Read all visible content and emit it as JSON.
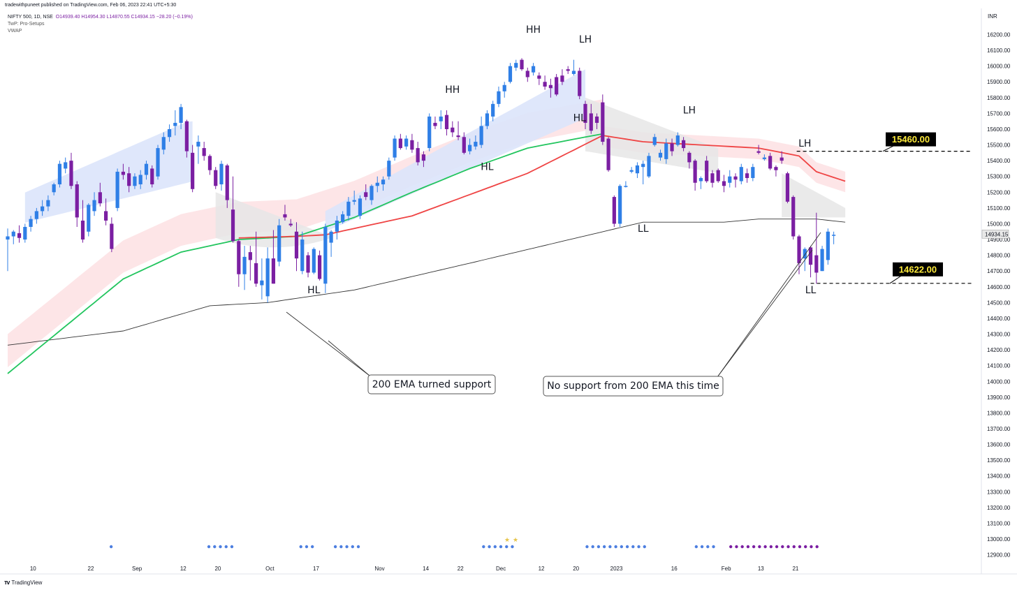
{
  "header": {
    "published": "tradewithpuneet published on TradingView.com, Feb 06, 2023 22:41 UTC+5:30"
  },
  "legend": {
    "symbol": "NIFTY 500, 1D, NSE",
    "ohlc": "O14939.40  H14954.30  L14870.55  C14934.15  −28.20 (−0.19%)",
    "indicator1": "TwP: Pro-Setups",
    "indicator2": "VWAP"
  },
  "currency": "INR",
  "footer": {
    "brand": "TradingView"
  },
  "colors": {
    "up": "#2f7fe6",
    "down": "#7b1fa2",
    "ema_green": "#22c55e",
    "ema_red": "#ef4444",
    "ema200": "#333333",
    "band_blue": "#dbe4fb",
    "band_red": "#fde2e4",
    "band_gray": "#e6e6e6"
  },
  "chart_data": {
    "type": "candlestick",
    "y_axis": {
      "min": 12850,
      "max": 16300,
      "ticks": [
        12900,
        13000,
        13100,
        13200,
        13300,
        13400,
        13500,
        13600,
        13700,
        13800,
        13900,
        14000,
        14100,
        14200,
        14300,
        14400,
        14500,
        14600,
        14700,
        14800,
        14900,
        15000,
        15100,
        15200,
        15300,
        15400,
        15500,
        15600,
        15700,
        15800,
        15900,
        16000,
        16100,
        16200
      ]
    },
    "x_axis": {
      "tick_labels": [
        {
          "label": "10",
          "i": 1
        },
        {
          "label": "22",
          "i": 11
        },
        {
          "label": "Sep",
          "i": 19
        },
        {
          "label": "12",
          "i": 27
        },
        {
          "label": "20",
          "i": 33
        },
        {
          "label": "Oct",
          "i": 42
        },
        {
          "label": "17",
          "i": 50
        },
        {
          "label": "Nov",
          "i": 61
        },
        {
          "label": "14",
          "i": 69
        },
        {
          "label": "22",
          "i": 75
        },
        {
          "label": "Dec",
          "i": 82
        },
        {
          "label": "12",
          "i": 89
        },
        {
          "label": "20",
          "i": 95
        },
        {
          "label": "2023",
          "i": 102
        },
        {
          "label": "16",
          "i": 112
        },
        {
          "label": "Feb",
          "i": 121
        },
        {
          "label": "13",
          "i": 127
        },
        {
          "label": "21",
          "i": 133
        }
      ]
    },
    "last_price": "14934.15",
    "candles": [
      [
        14900,
        14970,
        14700,
        14920
      ],
      [
        14920,
        14960,
        14870,
        14950
      ],
      [
        14940,
        14990,
        14880,
        14910
      ],
      [
        14900,
        15000,
        14880,
        14980
      ],
      [
        14980,
        15050,
        14950,
        15030
      ],
      [
        15030,
        15100,
        15000,
        15080
      ],
      [
        15080,
        15150,
        15050,
        15110
      ],
      [
        15110,
        15180,
        15080,
        15150
      ],
      [
        15200,
        15260,
        15180,
        15250
      ],
      [
        15250,
        15400,
        15230,
        15380
      ],
      [
        15350,
        15420,
        15320,
        15390
      ],
      [
        15400,
        15450,
        15220,
        15240
      ],
      [
        15250,
        15270,
        14980,
        15040
      ],
      [
        15020,
        15150,
        14880,
        14900
      ],
      [
        14950,
        15130,
        14920,
        15120
      ],
      [
        15080,
        15200,
        15050,
        15150
      ],
      [
        15200,
        15260,
        15110,
        15130
      ],
      [
        15080,
        15160,
        14990,
        15020
      ],
      [
        15000,
        15040,
        14820,
        14840
      ],
      [
        15100,
        15350,
        15080,
        15330
      ],
      [
        15330,
        15380,
        15280,
        15310
      ],
      [
        15320,
        15360,
        15200,
        15240
      ],
      [
        15240,
        15320,
        15220,
        15300
      ],
      [
        15250,
        15340,
        15220,
        15310
      ],
      [
        15310,
        15400,
        15280,
        15380
      ],
      [
        15350,
        15370,
        15230,
        15250
      ],
      [
        15300,
        15500,
        15280,
        15480
      ],
      [
        15470,
        15580,
        15440,
        15550
      ],
      [
        15550,
        15630,
        15520,
        15600
      ],
      [
        15620,
        15720,
        15560,
        15640
      ],
      [
        15640,
        15760,
        15600,
        15740
      ],
      [
        15650,
        15660,
        15420,
        15460
      ],
      [
        15450,
        15500,
        15200,
        15220
      ],
      [
        15490,
        15560,
        15380,
        15520
      ],
      [
        15480,
        15520,
        15400,
        15430
      ],
      [
        15430,
        15440,
        15310,
        15340
      ],
      [
        15340,
        15360,
        15220,
        15240
      ],
      [
        15250,
        15400,
        15210,
        15380
      ],
      [
        15370,
        15380,
        15100,
        15150
      ],
      [
        15090,
        15300,
        14880,
        14890
      ],
      [
        14890,
        14900,
        14600,
        14680
      ],
      [
        14680,
        14860,
        14580,
        14790
      ],
      [
        14820,
        14860,
        14640,
        14770
      ],
      [
        14750,
        14950,
        14600,
        14620
      ],
      [
        14610,
        14780,
        14520,
        14640
      ],
      [
        14540,
        14850,
        14500,
        14780
      ],
      [
        14780,
        14960,
        14620,
        14620
      ],
      [
        14760,
        15030,
        14730,
        14990
      ],
      [
        15060,
        15120,
        15020,
        15040
      ],
      [
        15000,
        15030,
        14980,
        14990
      ],
      [
        14950,
        15010,
        14700,
        14780
      ],
      [
        14700,
        14950,
        14680,
        14900
      ],
      [
        14800,
        14820,
        14660,
        14690
      ],
      [
        14690,
        14850,
        14680,
        14840
      ],
      [
        14800,
        14830,
        14640,
        14650
      ],
      [
        14620,
        15000,
        14560,
        14980
      ],
      [
        14880,
        14960,
        14790,
        14950
      ],
      [
        14950,
        15050,
        14900,
        15020
      ],
      [
        15010,
        15080,
        15000,
        15060
      ],
      [
        15050,
        15170,
        15020,
        15140
      ],
      [
        15140,
        15210,
        15120,
        15150
      ],
      [
        15050,
        15180,
        15030,
        15160
      ],
      [
        15200,
        15250,
        15150,
        15170
      ],
      [
        15150,
        15250,
        15120,
        15240
      ],
      [
        15240,
        15300,
        15200,
        15260
      ],
      [
        15250,
        15300,
        15210,
        15280
      ],
      [
        15300,
        15420,
        15280,
        15400
      ],
      [
        15420,
        15560,
        15400,
        15540
      ],
      [
        15540,
        15570,
        15470,
        15480
      ],
      [
        15490,
        15560,
        15470,
        15540
      ],
      [
        15530,
        15570,
        15450,
        15470
      ],
      [
        15480,
        15520,
        15370,
        15390
      ],
      [
        15440,
        15460,
        15360,
        15400
      ],
      [
        15480,
        15700,
        15460,
        15680
      ],
      [
        15640,
        15680,
        15600,
        15620
      ],
      [
        15650,
        15720,
        15600,
        15680
      ],
      [
        15690,
        15720,
        15560,
        15600
      ],
      [
        15610,
        15650,
        15550,
        15580
      ],
      [
        15560,
        15650,
        15530,
        15550
      ],
      [
        15550,
        15580,
        15440,
        15450
      ],
      [
        15460,
        15540,
        15440,
        15500
      ],
      [
        15490,
        15560,
        15470,
        15520
      ],
      [
        15500,
        15680,
        15480,
        15620
      ],
      [
        15620,
        15720,
        15600,
        15700
      ],
      [
        15680,
        15780,
        15650,
        15760
      ],
      [
        15760,
        15870,
        15740,
        15840
      ],
      [
        15840,
        15900,
        15800,
        15880
      ],
      [
        15900,
        16020,
        15890,
        16000
      ],
      [
        15990,
        16040,
        15970,
        16020
      ],
      [
        16040,
        16050,
        15970,
        15980
      ],
      [
        15970,
        15990,
        15900,
        15930
      ],
      [
        15960,
        16020,
        15940,
        16000
      ],
      [
        15940,
        15960,
        15880,
        15920
      ],
      [
        15900,
        15940,
        15850,
        15870
      ],
      [
        15880,
        15920,
        15800,
        15860
      ],
      [
        15930,
        15950,
        15810,
        15820
      ],
      [
        15940,
        15980,
        15880,
        15900
      ],
      [
        15980,
        16000,
        15950,
        15970
      ],
      [
        15950,
        16040,
        15940,
        15970
      ],
      [
        15970,
        15990,
        15790,
        15810
      ],
      [
        15760,
        15780,
        15600,
        15640
      ],
      [
        15700,
        15760,
        15570,
        15590
      ],
      [
        15680,
        15700,
        15600,
        15640
      ],
      [
        15770,
        15820,
        15500,
        15520
      ],
      [
        15540,
        15550,
        15330,
        15340
      ],
      [
        15170,
        15180,
        14980,
        15000
      ],
      [
        15000,
        15250,
        14980,
        15240
      ],
      [
        15240,
        15270,
        15230,
        15240
      ],
      [
        15330,
        15360,
        15320,
        15340
      ],
      [
        15320,
        15390,
        15290,
        15370
      ],
      [
        15360,
        15400,
        15250,
        15380
      ],
      [
        15300,
        15450,
        15290,
        15430
      ],
      [
        15500,
        15570,
        15490,
        15550
      ],
      [
        15420,
        15470,
        15400,
        15450
      ],
      [
        15410,
        15540,
        15380,
        15510
      ],
      [
        15510,
        15540,
        15430,
        15460
      ],
      [
        15500,
        15580,
        15490,
        15560
      ],
      [
        15530,
        15550,
        15460,
        15480
      ],
      [
        15450,
        15460,
        15350,
        15390
      ],
      [
        15400,
        15410,
        15210,
        15260
      ],
      [
        15270,
        15300,
        15220,
        15290
      ],
      [
        15400,
        15430,
        15260,
        15270
      ],
      [
        15320,
        15340,
        15230,
        15260
      ],
      [
        15340,
        15350,
        15260,
        15270
      ],
      [
        15270,
        15310,
        15200,
        15240
      ],
      [
        15260,
        15340,
        15230,
        15300
      ],
      [
        15300,
        15320,
        15230,
        15280
      ],
      [
        15270,
        15380,
        15250,
        15360
      ],
      [
        15320,
        15350,
        15260,
        15290
      ],
      [
        15290,
        15380,
        15270,
        15360
      ],
      [
        15460,
        15500,
        15440,
        15450
      ],
      [
        15410,
        15440,
        15400,
        15420
      ],
      [
        15430,
        15450,
        15340,
        15350
      ],
      [
        15360,
        15370,
        15300,
        15340
      ],
      [
        15420,
        15460,
        15380,
        15400
      ],
      [
        15320,
        15330,
        15130,
        15140
      ],
      [
        15170,
        15180,
        14900,
        14920
      ],
      [
        14920,
        14930,
        14680,
        14750
      ],
      [
        14780,
        14850,
        14700,
        14840
      ],
      [
        14850,
        14860,
        14660,
        14740
      ],
      [
        14800,
        15070,
        14620,
        14690
      ],
      [
        14700,
        14860,
        14700,
        14840
      ],
      [
        14770,
        14970,
        14740,
        14950
      ],
      [
        14930,
        14950,
        14870,
        14930
      ]
    ],
    "ema_green": [
      [
        0,
        14050
      ],
      [
        10,
        14350
      ],
      [
        20,
        14650
      ],
      [
        30,
        14820
      ],
      [
        40,
        14900
      ],
      [
        50,
        14920
      ],
      [
        60,
        15040
      ],
      [
        70,
        15200
      ],
      [
        80,
        15350
      ],
      [
        90,
        15480
      ],
      [
        100,
        15550
      ],
      [
        103,
        15570
      ]
    ],
    "ema_red": [
      [
        40,
        14910
      ],
      [
        50,
        14920
      ],
      [
        55,
        14930
      ],
      [
        70,
        15050
      ],
      [
        90,
        15320
      ],
      [
        103,
        15560
      ],
      [
        110,
        15520
      ],
      [
        120,
        15500
      ],
      [
        130,
        15480
      ],
      [
        137,
        15430
      ],
      [
        140,
        15330
      ],
      [
        145,
        15270
      ]
    ],
    "ema200": [
      [
        0,
        14230
      ],
      [
        20,
        14320
      ],
      [
        35,
        14480
      ],
      [
        45,
        14500
      ],
      [
        60,
        14580
      ],
      [
        80,
        14750
      ],
      [
        95,
        14880
      ],
      [
        110,
        15010
      ],
      [
        124,
        15010
      ],
      [
        130,
        15030
      ],
      [
        140,
        15030
      ],
      [
        145,
        15010
      ]
    ],
    "annotations": {
      "swing_labels": [
        {
          "text": "HH",
          "i": 91,
          "y": 16210
        },
        {
          "text": "LH",
          "i": 100,
          "y": 16150
        },
        {
          "text": "HH",
          "i": 77,
          "y": 15830
        },
        {
          "text": "LH",
          "i": 118,
          "y": 15700
        },
        {
          "text": "HL",
          "i": 99,
          "y": 15650
        },
        {
          "text": "HL",
          "i": 83,
          "y": 15340
        },
        {
          "text": "LH",
          "i": 138,
          "y": 15490
        },
        {
          "text": "LL",
          "i": 110,
          "y": 14950
        },
        {
          "text": "HL",
          "i": 53,
          "y": 14560
        },
        {
          "text": "LL",
          "i": 139,
          "y": 14560
        }
      ],
      "callouts": [
        "200 EMA turned support",
        "No support from 200 EMA this time"
      ],
      "levels": [
        {
          "price": 15460,
          "label": "15460.00",
          "from_i": 132
        },
        {
          "price": 14622,
          "label": "14622.00",
          "from_i": 139
        }
      ]
    }
  }
}
